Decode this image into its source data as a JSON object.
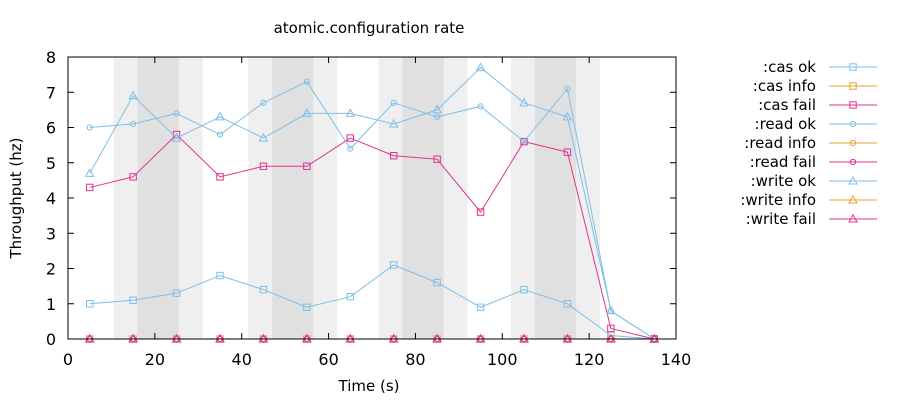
{
  "chart_data": {
    "type": "line",
    "title": "atomic.configuration rate",
    "xlabel": "Time (s)",
    "ylabel": "Throughput (hz)",
    "xlim": [
      0,
      140
    ],
    "ylim": [
      0,
      8
    ],
    "xticks": [
      "0",
      "20",
      "40",
      "60",
      "80",
      "100",
      "120",
      "140"
    ],
    "yticks": [
      "0",
      "1",
      "2",
      "3",
      "4",
      "5",
      "6",
      "7",
      "8"
    ],
    "grid": false,
    "legend_position": "right",
    "x": [
      5,
      15,
      25,
      35,
      45,
      55,
      65,
      75,
      85,
      95,
      105,
      115,
      125,
      135
    ],
    "nemesis_intervals": [
      {
        "start": 10.5,
        "end": 31,
        "inner_start": 16,
        "inner_end": 25.5
      },
      {
        "start": 41.5,
        "end": 62,
        "inner_start": 47,
        "inner_end": 56.5
      },
      {
        "start": 71.5,
        "end": 92,
        "inner_start": 77,
        "inner_end": 86.5
      },
      {
        "start": 102,
        "end": 122.5,
        "inner_start": 107.5,
        "inner_end": 117
      }
    ],
    "series": [
      {
        "name": ":cas ok",
        "color": "#81bfe8",
        "marker": "square",
        "values": [
          1.0,
          1.1,
          1.3,
          1.8,
          1.4,
          0.9,
          1.2,
          2.1,
          1.6,
          0.9,
          1.4,
          1.0,
          0.1,
          0.0
        ]
      },
      {
        "name": ":cas info",
        "color": "#e8a033",
        "marker": "square",
        "values": [
          0,
          0,
          0,
          0,
          0,
          0,
          0,
          0,
          0,
          0,
          0,
          0,
          0,
          0
        ]
      },
      {
        "name": ":cas fail",
        "color": "#e0338f",
        "marker": "square",
        "values": [
          4.3,
          4.6,
          5.8,
          4.6,
          4.9,
          4.9,
          5.7,
          5.2,
          5.1,
          3.6,
          5.6,
          5.3,
          0.3,
          0.0
        ]
      },
      {
        "name": ":read ok",
        "color": "#81bfe8",
        "marker": "circle",
        "values": [
          6.0,
          6.1,
          6.4,
          5.8,
          6.7,
          7.3,
          5.4,
          6.7,
          6.3,
          6.6,
          5.6,
          7.1,
          0.8,
          0.0
        ]
      },
      {
        "name": ":read info",
        "color": "#e8a033",
        "marker": "circle",
        "values": [
          0,
          0,
          0,
          0,
          0,
          0,
          0,
          0,
          0,
          0,
          0,
          0,
          0,
          0
        ]
      },
      {
        "name": ":read fail",
        "color": "#e0338f",
        "marker": "circle",
        "values": [
          0,
          0,
          0,
          0,
          0,
          0,
          0,
          0,
          0,
          0,
          0,
          0,
          0,
          0
        ]
      },
      {
        "name": ":write ok",
        "color": "#81bfe8",
        "marker": "triangle",
        "values": [
          4.7,
          6.9,
          5.7,
          6.3,
          5.7,
          6.4,
          6.4,
          6.1,
          6.5,
          7.7,
          6.7,
          6.3,
          0.8,
          0.0
        ]
      },
      {
        "name": ":write info",
        "color": "#e8a033",
        "marker": "triangle",
        "values": [
          0,
          0,
          0,
          0,
          0,
          0,
          0,
          0,
          0,
          0,
          0,
          0,
          0,
          0
        ]
      },
      {
        "name": ":write fail",
        "color": "#e0338f",
        "marker": "triangle",
        "values": [
          0,
          0,
          0,
          0,
          0,
          0,
          0,
          0,
          0,
          0,
          0,
          0,
          0,
          0
        ]
      }
    ]
  }
}
